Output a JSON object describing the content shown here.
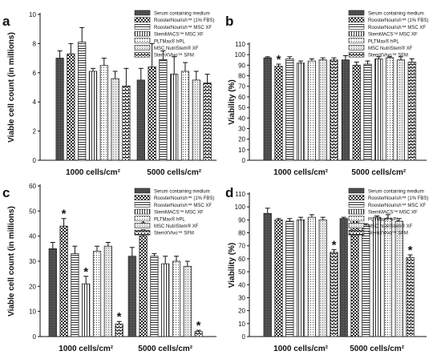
{
  "colors": {
    "axis": "#111111",
    "bar_outline": "#222222",
    "background": "#ffffff"
  },
  "legend_entries": [
    "Serum containing medium",
    "RoosterNourish™ (1% FBS)",
    "RoosterNourish™ MSC XF",
    "StemMACS™ MSC XF",
    "PLTMax® hPL",
    "MSC NutriStem® XF",
    "StemXVivo™ SFM"
  ],
  "patterns": [
    "dense-dots",
    "checker",
    "hlines",
    "vlines",
    "dots",
    "light-dots",
    "brick"
  ],
  "chart_data": [
    {
      "panel": "a",
      "type": "bar",
      "ylabel": "Viable cell count (in millions)",
      "ylim": [
        0,
        10
      ],
      "yticks": [
        0,
        2,
        4,
        6,
        8,
        10
      ],
      "categories": [
        "1000 cells/cm²",
        "5000 cells/cm²"
      ],
      "values": [
        [
          7.0,
          7.3,
          8.1,
          6.1,
          6.5,
          5.6,
          5.1
        ],
        [
          5.5,
          6.4,
          6.9,
          5.9,
          6.1,
          5.5,
          5.3
        ]
      ],
      "errors": [
        [
          0.5,
          0.7,
          1.0,
          0.2,
          0.5,
          0.5,
          1.2
        ],
        [
          0.8,
          1.6,
          0.6,
          1.2,
          0.6,
          0.6,
          0.6
        ]
      ],
      "stars": [
        [
          false,
          false,
          false,
          false,
          false,
          false,
          false
        ],
        [
          false,
          false,
          false,
          false,
          false,
          false,
          false
        ]
      ]
    },
    {
      "panel": "b",
      "type": "bar",
      "ylabel": "Viability (%)",
      "ylim": [
        0,
        110
      ],
      "yticks": [
        0,
        10,
        20,
        30,
        40,
        50,
        60,
        70,
        80,
        90,
        100,
        110
      ],
      "categories": [
        "1000 cells/cm²",
        "5000 cells/cm²"
      ],
      "values": [
        [
          97,
          89,
          96,
          92,
          94,
          95,
          95
        ],
        [
          95,
          90,
          91,
          96,
          97,
          95,
          93
        ]
      ],
      "errors": [
        [
          1,
          2,
          2,
          2,
          2,
          2,
          2
        ],
        [
          4,
          3,
          3,
          2,
          1,
          3,
          3
        ]
      ],
      "stars": [
        [
          false,
          true,
          false,
          false,
          false,
          false,
          false
        ],
        [
          false,
          false,
          false,
          false,
          false,
          false,
          false
        ]
      ]
    },
    {
      "panel": "c",
      "type": "bar",
      "ylabel": "Viable cell count (in millions)",
      "ylim": [
        0,
        60
      ],
      "yticks": [
        0,
        10,
        20,
        30,
        40,
        50,
        60
      ],
      "categories": [
        "1000 cells/cm²",
        "5000 cells/cm²"
      ],
      "values": [
        [
          35,
          44,
          33,
          21,
          34,
          36,
          5
        ],
        [
          32,
          40,
          32,
          29,
          30,
          28,
          2
        ]
      ],
      "errors": [
        [
          2.5,
          3,
          3,
          3,
          2,
          1.5,
          1
        ],
        [
          3.5,
          2.5,
          1,
          3,
          2,
          2,
          0.5
        ]
      ],
      "stars": [
        [
          false,
          true,
          false,
          true,
          false,
          false,
          true
        ],
        [
          false,
          true,
          false,
          false,
          false,
          false,
          true
        ]
      ]
    },
    {
      "panel": "d",
      "type": "bar",
      "ylabel": "Viability (%)",
      "ylim": [
        0,
        110
      ],
      "yticks": [
        0,
        10,
        20,
        30,
        40,
        50,
        60,
        70,
        80,
        90,
        100,
        110
      ],
      "categories": [
        "1000 cells/cm²",
        "5000 cells/cm²"
      ],
      "values": [
        [
          95,
          90,
          89,
          90,
          92,
          90,
          65
        ],
        [
          91,
          90,
          86,
          92,
          91,
          89,
          61
        ]
      ],
      "errors": [
        [
          4,
          1,
          2,
          2,
          2,
          2,
          2
        ],
        [
          1,
          2,
          1,
          1,
          3,
          2,
          2
        ]
      ],
      "stars": [
        [
          false,
          false,
          false,
          false,
          false,
          false,
          true
        ],
        [
          false,
          false,
          false,
          false,
          false,
          false,
          true
        ]
      ]
    }
  ]
}
